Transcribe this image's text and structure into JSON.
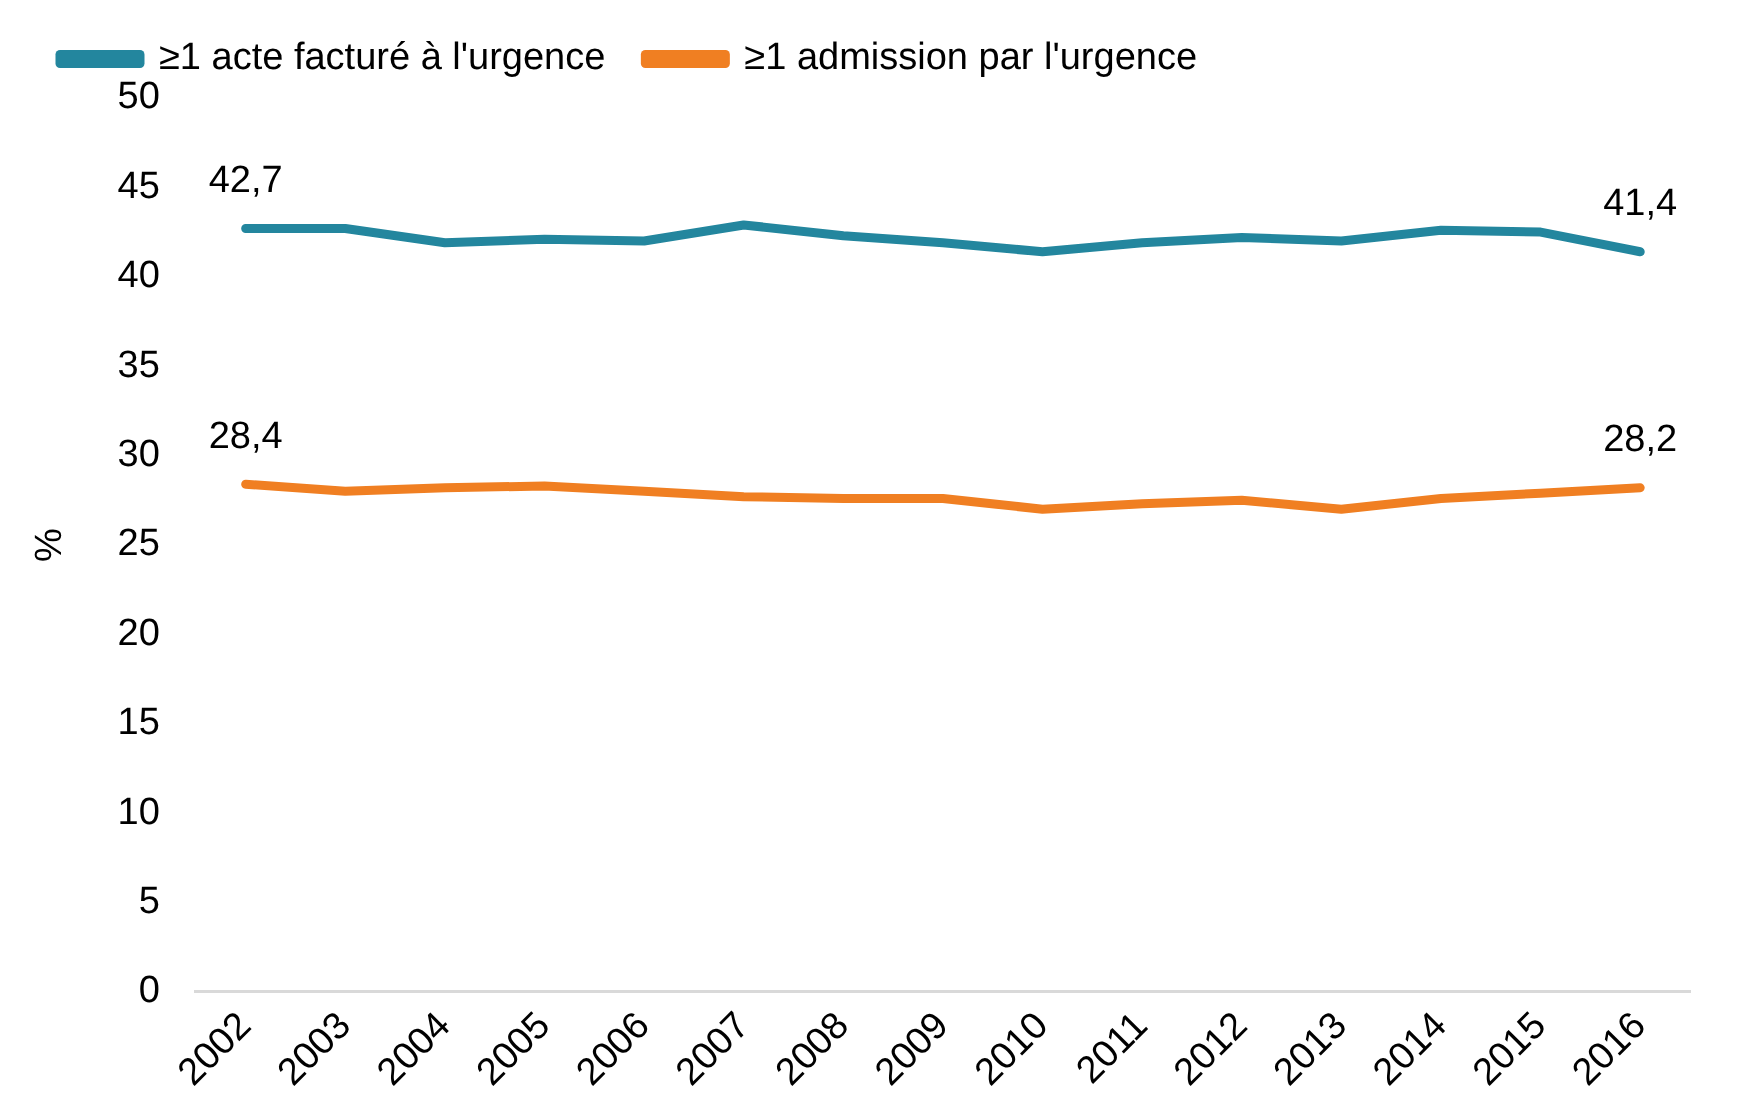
{
  "chart_data": {
    "type": "line",
    "ylabel": "%",
    "categories": [
      "2002",
      "2003",
      "2004",
      "2005",
      "2006",
      "2007",
      "2008",
      "2009",
      "2010",
      "2011",
      "2012",
      "2013",
      "2014",
      "2015",
      "2016"
    ],
    "series": [
      {
        "name": "≥1 acte facturé à l'urgence",
        "color": "#23869e",
        "values": [
          42.7,
          42.7,
          41.9,
          42.1,
          42.0,
          42.9,
          42.3,
          41.9,
          41.4,
          41.9,
          42.2,
          42.0,
          42.6,
          42.5,
          41.4
        ],
        "value_labels": [
          "42,7",
          null,
          null,
          null,
          null,
          null,
          null,
          null,
          null,
          null,
          null,
          null,
          null,
          null,
          "41,4"
        ]
      },
      {
        "name": "≥1 admission par l'urgence",
        "color": "#f07f22",
        "values": [
          28.4,
          28.0,
          28.2,
          28.3,
          28.0,
          27.7,
          27.6,
          27.6,
          27.0,
          27.3,
          27.5,
          27.0,
          27.6,
          27.9,
          28.2
        ],
        "value_labels": [
          "28,4",
          null,
          null,
          null,
          null,
          null,
          null,
          null,
          null,
          null,
          null,
          null,
          null,
          null,
          "28,2"
        ]
      }
    ],
    "ylim": [
      0,
      50
    ],
    "yticks": [
      0,
      5,
      10,
      15,
      20,
      25,
      30,
      35,
      40,
      45,
      50
    ],
    "grid": false,
    "legend": "top",
    "marker": "none",
    "line_style": "solid"
  }
}
